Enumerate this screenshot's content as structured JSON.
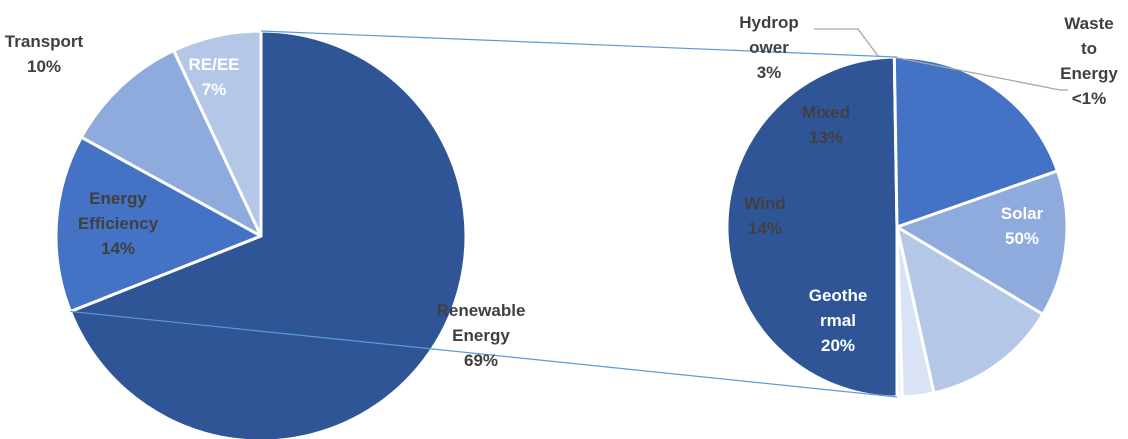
{
  "chart_data": [
    {
      "type": "pie",
      "title": "",
      "series": [
        {
          "labels": [
            "Renewable Energy",
            "Energy Efficiency",
            "Transport",
            "RE/EE"
          ],
          "values": [
            69,
            14,
            10,
            7
          ],
          "value_labels": [
            "69%",
            "14%",
            "10%",
            "7%"
          ]
        }
      ]
    },
    {
      "type": "pie",
      "title": "",
      "series": [
        {
          "labels": [
            "Solar",
            "Geothermal",
            "Wind",
            "Mixed",
            "Hydropower",
            "Waste to Energy"
          ],
          "values": [
            50,
            20,
            14,
            13,
            3,
            0.5
          ],
          "value_labels": [
            "50%",
            "20%",
            "14%",
            "13%",
            "3%",
            "<1%"
          ]
        }
      ]
    }
  ],
  "colors": {
    "main": [
      "#2f5597",
      "#4472c4",
      "#8faadc",
      "#b4c7e7"
    ],
    "sub": [
      "#2f5597",
      "#4472c4",
      "#8faadc",
      "#b4c7e7",
      "#dae3f3",
      "#eef2f9"
    ],
    "label_dark": "#404040",
    "label_light": "#ffffff",
    "connector": "#5b9bd5",
    "leader": "#a6a6a6"
  }
}
